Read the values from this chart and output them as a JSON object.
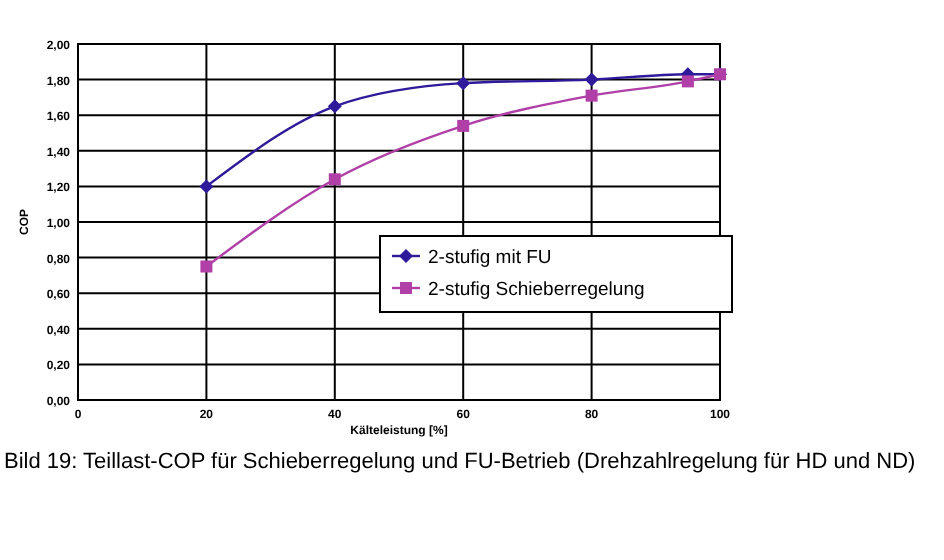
{
  "chart_data": {
    "type": "line",
    "xlabel": "Kälteleistung [%]",
    "ylabel": "COP",
    "xlim": [
      0,
      100
    ],
    "xticks": [
      0,
      20,
      40,
      60,
      80,
      100
    ],
    "ylim": [
      0,
      2
    ],
    "yticks": [
      {
        "value": 0,
        "label": "0,00"
      },
      {
        "value": 0.2,
        "label": "0,20"
      },
      {
        "value": 0.4,
        "label": "0,40"
      },
      {
        "value": 0.6,
        "label": "0,60"
      },
      {
        "value": 0.8,
        "label": "0,80"
      },
      {
        "value": 1,
        "label": "1,00"
      },
      {
        "value": 1.2,
        "label": "1,20"
      },
      {
        "value": 1.4,
        "label": "1,40"
      },
      {
        "value": 1.6,
        "label": "1,60"
      },
      {
        "value": 1.8,
        "label": "1,80"
      },
      {
        "value": 2,
        "label": "2,00"
      }
    ],
    "grid": true,
    "legend": "right",
    "series": [
      {
        "name": "2-stufig mit FU",
        "color": "#2e1a9a",
        "marker": "diamond",
        "x": [
          20,
          40,
          60,
          80,
          95,
          100
        ],
        "values": [
          1.2,
          1.65,
          1.78,
          1.8,
          1.83,
          1.83
        ]
      },
      {
        "name": "2-stufig Schieberregelung",
        "color": "#b040a8",
        "marker": "square",
        "x": [
          20,
          40,
          60,
          80,
          95,
          100
        ],
        "values": [
          0.75,
          1.24,
          1.54,
          1.71,
          1.79,
          1.83
        ]
      }
    ],
    "annotations": [
      "Bild 19: Teillast-COP für Schieberregelung und FU-Betrieb (Drehzahlregelung für HD und ND)"
    ]
  }
}
